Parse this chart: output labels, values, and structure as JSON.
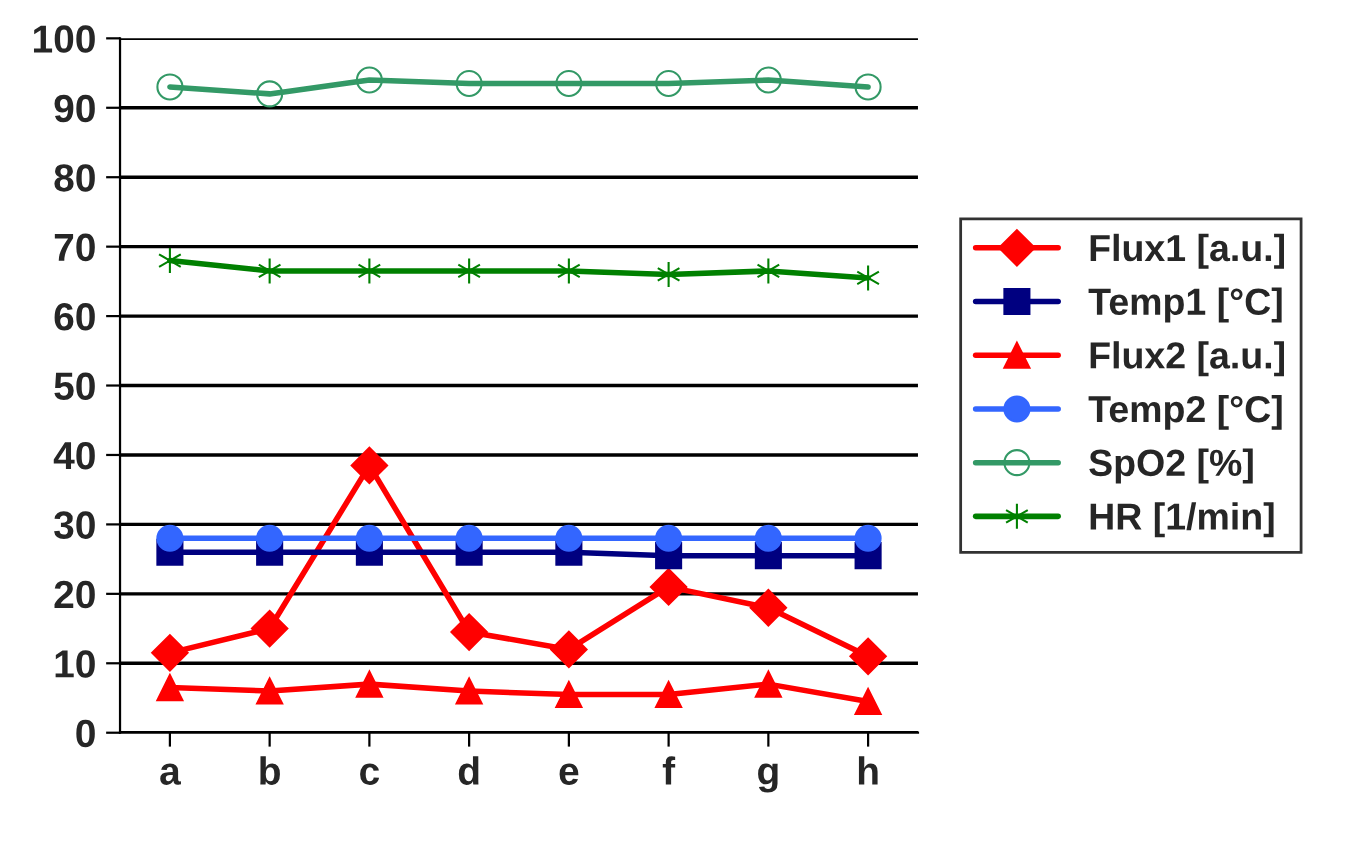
{
  "chart_data": {
    "type": "line",
    "categories": [
      "a",
      "b",
      "c",
      "d",
      "e",
      "f",
      "g",
      "h"
    ],
    "series": [
      {
        "name": "Flux1 [a.u.]",
        "color": "#ff0000",
        "marker": "diamond",
        "values": [
          11.5,
          15,
          38.5,
          14.5,
          12,
          21,
          18,
          11
        ]
      },
      {
        "name": "Temp1 [°C]",
        "color": "#000080",
        "marker": "square",
        "values": [
          26,
          26,
          26,
          26,
          26,
          25.5,
          25.5,
          25.5
        ]
      },
      {
        "name": "Flux2 [a.u.]",
        "color": "#ff0000",
        "marker": "triangle",
        "values": [
          6.5,
          6,
          7,
          6,
          5.5,
          5.5,
          7,
          4.5
        ]
      },
      {
        "name": "Temp2 [°C]",
        "color": "#3366ff",
        "marker": "circle",
        "values": [
          28,
          28,
          28,
          28,
          28,
          28,
          28,
          28
        ]
      },
      {
        "name": "SpO2 [%]",
        "color": "#339966",
        "marker": "open circle",
        "values": [
          93,
          92,
          94,
          93.5,
          93.5,
          93.5,
          94,
          93
        ]
      },
      {
        "name": "HR [1/min]",
        "color": "#008000",
        "marker": "cross",
        "values": [
          68,
          66.5,
          66.5,
          66.5,
          66.5,
          66,
          66.5,
          65.5
        ]
      }
    ],
    "ylim": [
      0,
      100
    ],
    "yticks": [
      0,
      10,
      20,
      30,
      40,
      50,
      60,
      70,
      80,
      90,
      100
    ],
    "grid": "y",
    "legend": "right",
    "line_style": "solid"
  }
}
